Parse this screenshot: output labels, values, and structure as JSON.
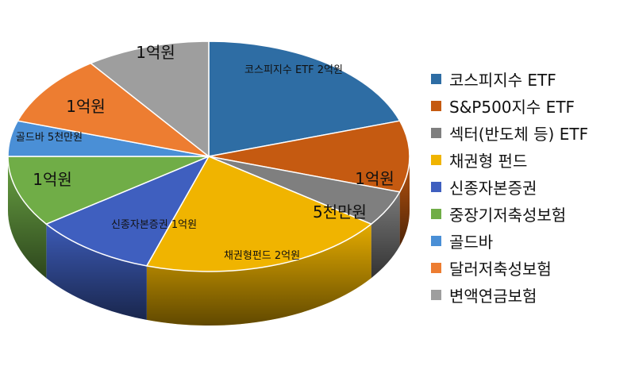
{
  "chart_data": {
    "type": "pie",
    "title": "",
    "style": "3d",
    "legend_position": "right",
    "slices": [
      {
        "name": "코스피지수 ETF",
        "label": "코스피지수 ETF 2억원",
        "value": 2.0,
        "color": "#2e6da4",
        "size": "small"
      },
      {
        "name": "S&P500지수 ETF",
        "label": "1억원",
        "value": 1.0,
        "color": "#c55a11",
        "size": "large"
      },
      {
        "name": "섹터(반도체 등) ETF",
        "label": "5천만원",
        "value": 0.5,
        "color": "#7f7f7f",
        "size": "large"
      },
      {
        "name": "채권형 펀드",
        "label": "채권형펀드 2억원",
        "value": 2.0,
        "color": "#f0b400",
        "size": "small"
      },
      {
        "name": "신종자본증권",
        "label": "신종자본증권 1억원",
        "value": 1.0,
        "color": "#3f5fbf",
        "size": "small"
      },
      {
        "name": "중장기저축성보험",
        "label": "1억원",
        "value": 1.0,
        "color": "#70ad47",
        "size": "large"
      },
      {
        "name": "골드바",
        "label": "골드바 5천만원",
        "value": 0.5,
        "color": "#4a8fd6",
        "size": "small"
      },
      {
        "name": "달러저축성보험",
        "label": "1억원",
        "value": 1.0,
        "color": "#ed7d31",
        "size": "large"
      },
      {
        "name": "변액연금보험",
        "label": "1억원",
        "value": 1.0,
        "color": "#9e9e9e",
        "size": "large"
      }
    ]
  }
}
